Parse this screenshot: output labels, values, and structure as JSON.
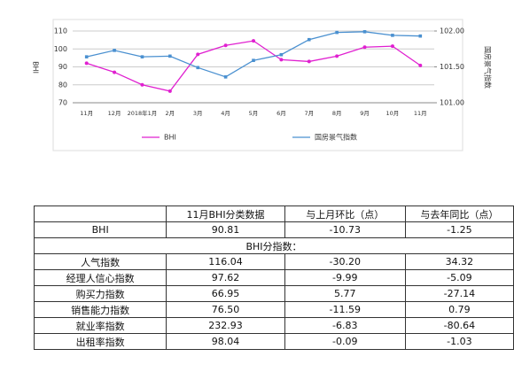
{
  "chart_data": {
    "type": "line",
    "categories": [
      "11月",
      "12月",
      "2018年1月",
      "2月",
      "3月",
      "4月",
      "5月",
      "6月",
      "7月",
      "8月",
      "9月",
      "10月",
      "11月"
    ],
    "series": [
      {
        "name": "BHI",
        "color": "#e020d0",
        "values": [
          92.06,
          87,
          80,
          76.5,
          97,
          102,
          104.5,
          94,
          93,
          96,
          101,
          101.54,
          90.81
        ]
      },
      {
        "name": "国房景气指数",
        "color": "#4a90d0",
        "axis": "y2",
        "values": [
          101.64,
          101.73,
          101.64,
          101.65,
          101.49,
          101.36,
          101.59,
          101.67,
          101.88,
          101.98,
          101.99,
          101.94,
          101.93
        ]
      }
    ],
    "ylabel": "BHI",
    "y2label": "国房景气指数",
    "ylim": [
      70,
      110
    ],
    "yticks": [
      70,
      80,
      90,
      100,
      110
    ],
    "y2lim": [
      101,
      102
    ],
    "y2ticks": [
      {
        "value": 101,
        "label": "101.00"
      },
      {
        "value": 101.5,
        "label": "101.50"
      },
      {
        "value": 102,
        "label": "102.00"
      }
    ],
    "grid": true
  },
  "table": {
    "header": [
      "",
      "11月BHI分类数据",
      "与上月环比（点）",
      "与去年同比（点）"
    ],
    "rows": [
      [
        "BHI",
        "90.81",
        "-10.73",
        "-1.25"
      ],
      [
        "BHI分指数："
      ],
      [
        "人气指数",
        "116.04",
        "-30.20",
        "34.32"
      ],
      [
        "经理人信心指数",
        "97.62",
        "-9.99",
        "-5.09"
      ],
      [
        "购买力指数",
        "66.95",
        "5.77",
        "-27.14"
      ],
      [
        "销售能力指数",
        "76.50",
        "-11.59",
        "0.79"
      ],
      [
        "就业率指数",
        "232.93",
        "-6.83",
        "-80.64"
      ],
      [
        "出租率指数",
        "98.04",
        "-0.09",
        "-1.03"
      ]
    ]
  }
}
